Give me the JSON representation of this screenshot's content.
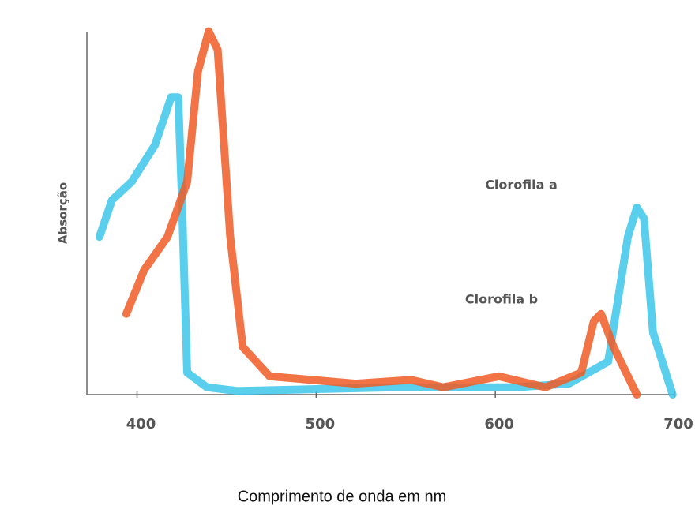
{
  "chart_data": {
    "type": "line",
    "xlabel": "Comprimento de onda em nm",
    "ylabel": "Absorção",
    "xlim": [
      372,
      700
    ],
    "xticks": [
      400,
      500,
      600,
      700
    ],
    "ylim": [
      0,
      100
    ],
    "series": [
      {
        "name": "Clorofila a",
        "color": "#3cc6ea",
        "x": [
          379,
          386,
          397,
          410,
          419,
          423,
          425,
          428,
          439,
          456,
          500,
          544,
          580,
          611,
          641,
          663,
          674,
          679,
          683,
          688,
          699
        ],
        "values": [
          43,
          53,
          58,
          68,
          81,
          81,
          54,
          6,
          2,
          1,
          1.5,
          2,
          2,
          2,
          3,
          9,
          43,
          51,
          48,
          17,
          0
        ]
      },
      {
        "name": "Clorofila b",
        "color": "#f05a24",
        "x": [
          394,
          404,
          417,
          428,
          434,
          440,
          445,
          452,
          459,
          474,
          522,
          553,
          571,
          602,
          628,
          648,
          655,
          659,
          666,
          679
        ],
        "values": [
          22,
          34,
          43,
          58,
          88,
          99,
          94,
          43,
          13,
          5,
          3,
          4,
          2,
          5,
          2,
          6,
          20,
          22,
          13,
          0
        ]
      }
    ]
  }
}
